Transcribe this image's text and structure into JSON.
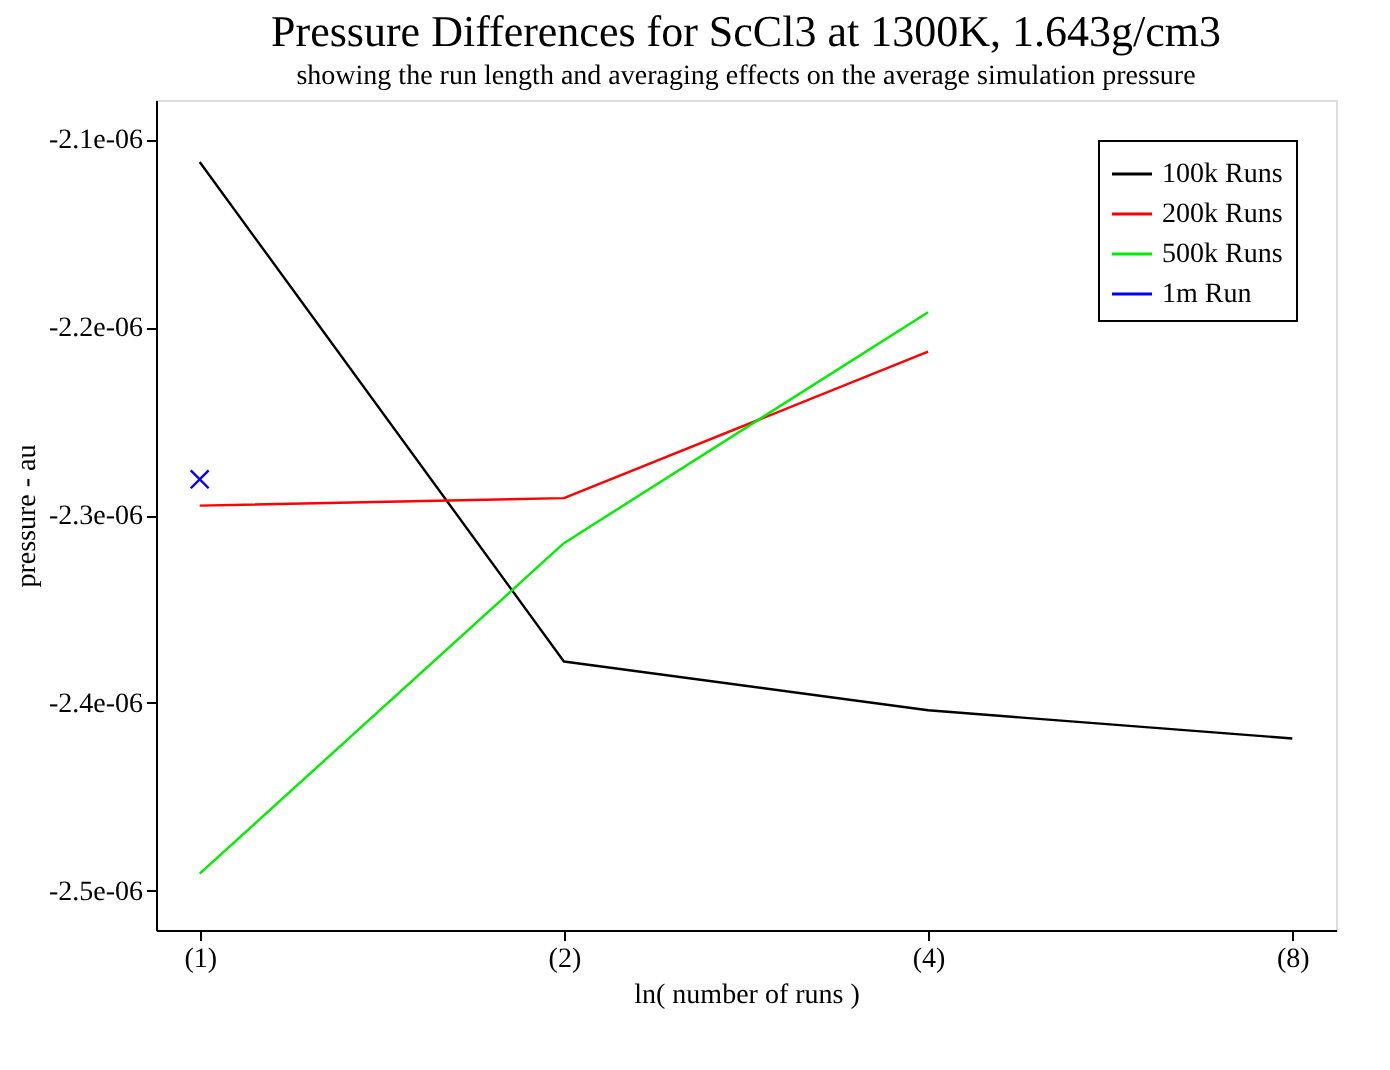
{
  "chart_data": {
    "type": "line",
    "title": "Pressure Differences for ScCl3 at 1300K, 1.643g/cm3",
    "subtitle": "showing the run length and averaging effects on the average simulation pressure",
    "xlabel": "ln( number of runs )",
    "ylabel": "pressure - au",
    "categories": [
      "(1)",
      "(2)",
      "(4)",
      "(8)"
    ],
    "ylim": [
      -2.521e-06,
      -2.079e-06
    ],
    "yticks": [
      {
        "value": -2.5e-06,
        "label": "-2.5e-06"
      },
      {
        "value": -2.4e-06,
        "label": "-2.4e-06"
      },
      {
        "value": -2.3e-06,
        "label": "-2.3e-06"
      },
      {
        "value": -2.2e-06,
        "label": "-2.2e-06"
      },
      {
        "value": -2.1e-06,
        "label": "-2.1e-06"
      }
    ],
    "grid": false,
    "legend": "top right",
    "series": [
      {
        "name": "100k Runs",
        "color": "#000000",
        "values": [
          -2.112e-06,
          -2.378e-06,
          -2.404e-06,
          -2.419e-06
        ]
      },
      {
        "name": "200k Runs",
        "color": "#ff0000",
        "values": [
          -2.295e-06,
          -2.291e-06,
          -2.213e-06,
          null
        ]
      },
      {
        "name": "500k Runs",
        "color": "#00ee00",
        "values": [
          -2.491e-06,
          -2.315e-06,
          -2.192e-06,
          null
        ]
      },
      {
        "name": "1m Run",
        "color": "#0000ff",
        "type": "scatter",
        "marker": "cross",
        "values": [
          -2.281e-06,
          null,
          null,
          null
        ]
      }
    ]
  }
}
